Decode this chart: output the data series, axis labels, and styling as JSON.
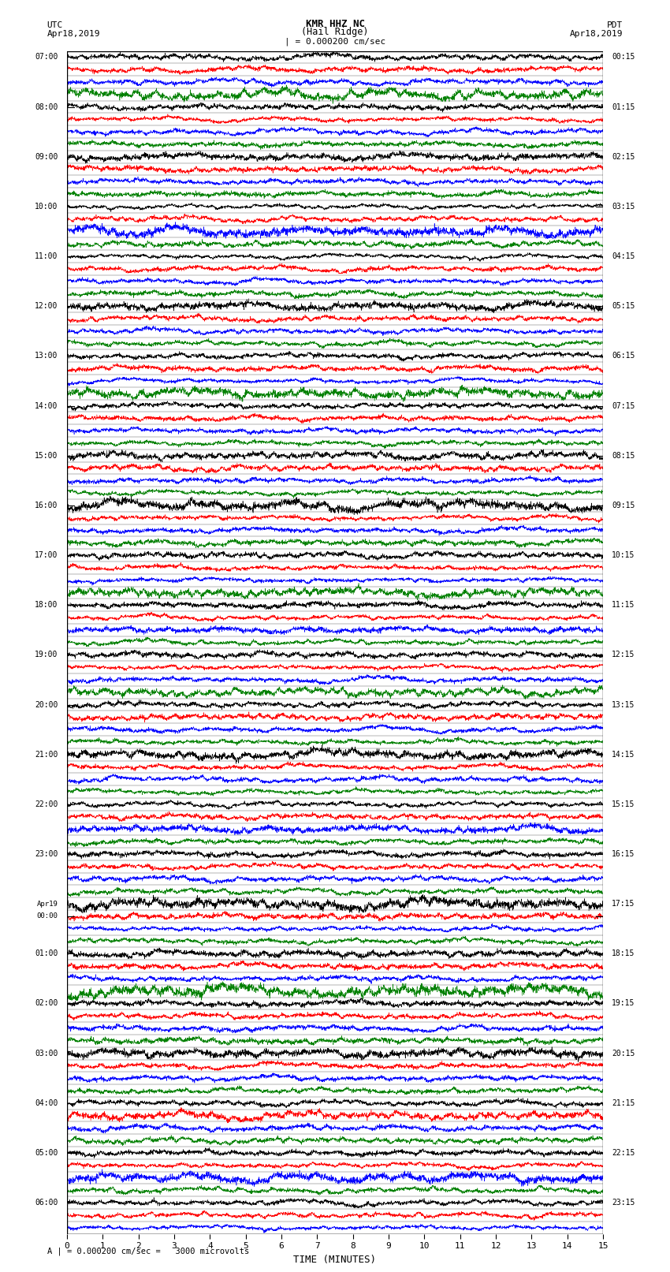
{
  "title_line1": "KMR HHZ NC",
  "title_line2": "(Hail Ridge)",
  "left_label_top": "UTC",
  "left_label_date": "Apr18,2019",
  "right_label_top": "PDT",
  "right_label_date": "Apr18,2019",
  "scale_label": "| = 0.000200 cm/sec",
  "bottom_label": "A | = 0.000200 cm/sec =   3000 microvolts",
  "xlabel": "TIME (MINUTES)",
  "xlim": [
    0,
    15
  ],
  "xticks": [
    0,
    1,
    2,
    3,
    4,
    5,
    6,
    7,
    8,
    9,
    10,
    11,
    12,
    13,
    14,
    15
  ],
  "colors": [
    "black",
    "red",
    "blue",
    "green"
  ],
  "left_times": [
    "07:00",
    "",
    "",
    "",
    "08:00",
    "",
    "",
    "",
    "09:00",
    "",
    "",
    "",
    "10:00",
    "",
    "",
    "",
    "11:00",
    "",
    "",
    "",
    "12:00",
    "",
    "",
    "",
    "13:00",
    "",
    "",
    "",
    "14:00",
    "",
    "",
    "",
    "15:00",
    "",
    "",
    "",
    "16:00",
    "",
    "",
    "",
    "17:00",
    "",
    "",
    "",
    "18:00",
    "",
    "",
    "",
    "19:00",
    "",
    "",
    "",
    "20:00",
    "",
    "",
    "",
    "21:00",
    "",
    "",
    "",
    "22:00",
    "",
    "",
    "",
    "23:00",
    "",
    "",
    "",
    "Apr19",
    "00:00",
    "",
    "",
    "01:00",
    "",
    "",
    "",
    "02:00",
    "",
    "",
    "",
    "03:00",
    "",
    "",
    "",
    "04:00",
    "",
    "",
    "",
    "05:00",
    "",
    "",
    "",
    "06:00",
    "",
    ""
  ],
  "right_times": [
    "00:15",
    "",
    "",
    "",
    "01:15",
    "",
    "",
    "",
    "02:15",
    "",
    "",
    "",
    "03:15",
    "",
    "",
    "",
    "04:15",
    "",
    "",
    "",
    "05:15",
    "",
    "",
    "",
    "06:15",
    "",
    "",
    "",
    "07:15",
    "",
    "",
    "",
    "08:15",
    "",
    "",
    "",
    "09:15",
    "",
    "",
    "",
    "10:15",
    "",
    "",
    "",
    "11:15",
    "",
    "",
    "",
    "12:15",
    "",
    "",
    "",
    "13:15",
    "",
    "",
    "",
    "14:15",
    "",
    "",
    "",
    "15:15",
    "",
    "",
    "",
    "16:15",
    "",
    "",
    "",
    "17:15",
    "",
    "",
    "",
    "18:15",
    "",
    "",
    "",
    "19:15",
    "",
    "",
    "",
    "20:15",
    "",
    "",
    "",
    "21:15",
    "",
    "",
    "",
    "22:15",
    "",
    "",
    "",
    "23:15",
    "",
    ""
  ],
  "num_rows": 95,
  "amplitude": 0.42,
  "bg_color": "white",
  "fig_width": 8.5,
  "fig_height": 16.13,
  "trace_lw": 0.4,
  "n_points": 3000,
  "border_lw": 1.0,
  "tick_lw": 0.8
}
